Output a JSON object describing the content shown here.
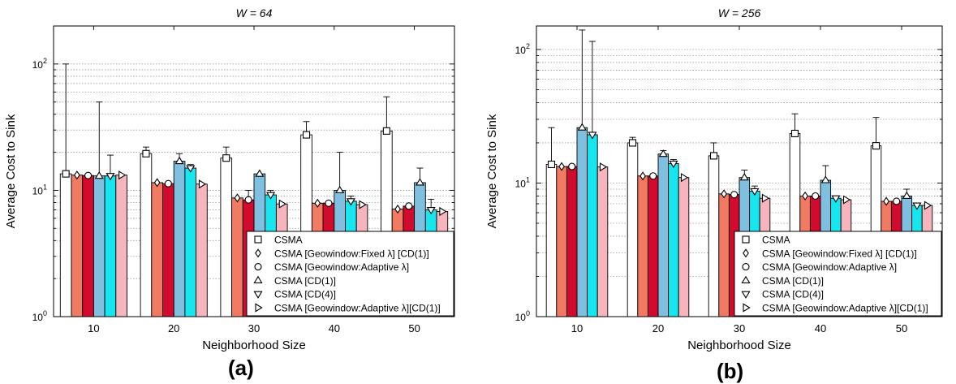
{
  "colors": {
    "series": [
      "#ffffff",
      "#f07a62",
      "#d10a2e",
      "#7fbfe0",
      "#18e6ef",
      "#f6b4bc"
    ],
    "grid": "#9a9a9a",
    "axis": "#000000"
  },
  "panel_labels": [
    "(a)",
    "(b)"
  ],
  "chart_data": [
    {
      "type": "bar",
      "title": "W = 64",
      "xlabel": "Neighborhood Size",
      "ylabel": "Average Cost to Sink",
      "yscale": "log",
      "ylim": [
        1,
        200
      ],
      "yticks": [
        {
          "v": 1,
          "exp": "0"
        },
        {
          "v": 10,
          "exp": "1"
        },
        {
          "v": 100,
          "exp": "2"
        }
      ],
      "categories": [
        "10",
        "20",
        "30",
        "40",
        "50"
      ],
      "grid": true,
      "legend_position": "lower-right",
      "series": [
        {
          "name": "CSMA",
          "marker": "square",
          "values": [
            13.5,
            19.5,
            18,
            27.5,
            29.5
          ],
          "err_hi": [
            100,
            22,
            22,
            35,
            55
          ]
        },
        {
          "name": "CSMA [Geowindow:Fixed λ] [CD(1)]",
          "marker": "diamond",
          "values": [
            13.2,
            11.5,
            8.7,
            7.9,
            7.1
          ],
          "err_hi": [
            13.2,
            11.5,
            8.7,
            7.9,
            7.1
          ]
        },
        {
          "name": "CSMA [Geowindow:Adaptive λ]",
          "marker": "circle",
          "values": [
            13.1,
            11.3,
            8.4,
            7.9,
            7.5
          ],
          "err_hi": [
            13.1,
            11.3,
            10,
            7.9,
            7.5
          ]
        },
        {
          "name": "CSMA [CD(1)]",
          "marker": "triangle-up",
          "values": [
            13,
            17,
            13.5,
            10,
            11.5
          ],
          "err_hi": [
            50,
            19.5,
            13.5,
            20,
            15
          ]
        },
        {
          "name": "CSMA [CD(4)]",
          "marker": "triangle-down",
          "values": [
            13,
            15,
            9.2,
            8.2,
            7
          ],
          "err_hi": [
            19,
            16,
            10,
            9,
            8.5
          ]
        },
        {
          "name": "CSMA [Geowindow:Adaptive λ][CD(1)]",
          "marker": "triangle-right",
          "values": [
            13.2,
            11.2,
            7.8,
            7.7,
            6.8
          ],
          "err_hi": [
            13.2,
            11.2,
            7.8,
            7.7,
            6.8
          ]
        }
      ]
    },
    {
      "type": "bar",
      "title": "W = 256",
      "xlabel": "Neighborhood Size",
      "ylabel": "Average Cost to Sink",
      "yscale": "log",
      "ylim": [
        1,
        150
      ],
      "yticks": [
        {
          "v": 1,
          "exp": "0"
        },
        {
          "v": 10,
          "exp": "1"
        },
        {
          "v": 100,
          "exp": "2"
        }
      ],
      "categories": [
        "10",
        "20",
        "30",
        "40",
        "50"
      ],
      "grid": true,
      "legend_position": "lower-right",
      "series": [
        {
          "name": "CSMA",
          "marker": "square",
          "values": [
            13.8,
            20,
            16,
            23.5,
            19
          ],
          "err_hi": [
            26,
            22,
            20,
            33,
            31
          ]
        },
        {
          "name": "CSMA [Geowindow:Fixed λ] [CD(1)]",
          "marker": "diamond",
          "values": [
            13.3,
            11.3,
            8.3,
            8,
            7.3
          ],
          "err_hi": [
            13.3,
            11.3,
            8.3,
            8,
            7.3
          ]
        },
        {
          "name": "CSMA [Geowindow:Adaptive λ]",
          "marker": "circle",
          "values": [
            13.3,
            11.3,
            8.2,
            8,
            7.3
          ],
          "err_hi": [
            13.3,
            11.3,
            8.2,
            8,
            7.3
          ]
        },
        {
          "name": "CSMA [CD(1)]",
          "marker": "triangle-up",
          "values": [
            26,
            16.5,
            11,
            10.5,
            8
          ],
          "err_hi": [
            140,
            17.5,
            12.5,
            13.5,
            9
          ]
        },
        {
          "name": "CSMA [CD(4)]",
          "marker": "triangle-down",
          "values": [
            23,
            14,
            8.7,
            7.7,
            6.8
          ],
          "err_hi": [
            115,
            15,
            9.5,
            8,
            7
          ]
        },
        {
          "name": "CSMA [Geowindow:Adaptive λ][CD(1)]",
          "marker": "triangle-right",
          "values": [
            13.2,
            11,
            7.7,
            7.5,
            6.8
          ],
          "err_hi": [
            13.2,
            11,
            7.7,
            7.5,
            6.8
          ]
        }
      ]
    }
  ]
}
